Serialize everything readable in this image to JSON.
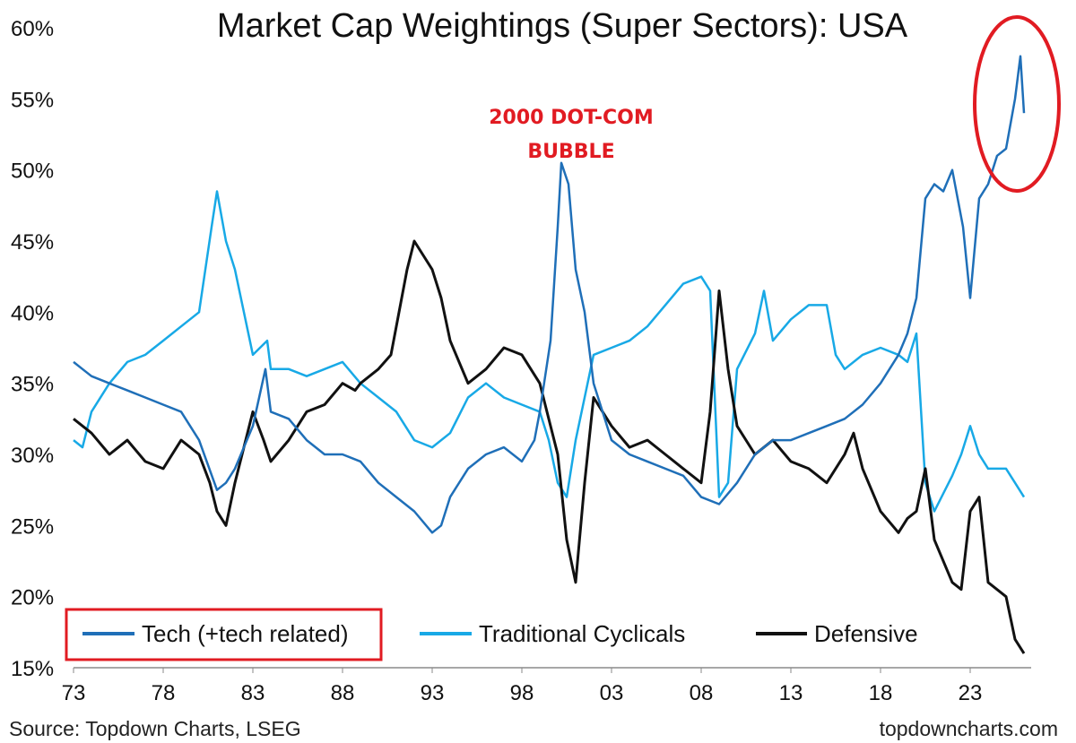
{
  "chart_data": {
    "type": "line",
    "title": "Market Cap Weightings (Super Sectors): USA",
    "annotation": [
      "2000 DOT-COM",
      "BUBBLE"
    ],
    "source": "Source: Topdown Charts, LSEG",
    "watermark": "topdowncharts.com",
    "ylim": [
      15,
      60
    ],
    "y_ticks": [
      60,
      55,
      50,
      45,
      40,
      35,
      30,
      25,
      20,
      15
    ],
    "y_tick_labels": [
      "60%",
      "55%",
      "50%",
      "45%",
      "40%",
      "35%",
      "30%",
      "25%",
      "20%",
      "15%"
    ],
    "xlim": [
      1973,
      2026.2
    ],
    "x_ticks": [
      1973,
      1978,
      1983,
      1988,
      1993,
      1998,
      2003,
      2008,
      2013,
      2018,
      2023
    ],
    "x_tick_labels": [
      "73",
      "78",
      "83",
      "88",
      "93",
      "98",
      "03",
      "08",
      "13",
      "18",
      "23"
    ],
    "grid": false,
    "legend_position": "bottom",
    "series": [
      {
        "name": "Tech (+tech related)",
        "color": "#1f6fb8",
        "x": [
          1973,
          1973.5,
          1974,
          1975,
          1976,
          1977,
          1978,
          1979,
          1980,
          1981,
          1981.5,
          1982,
          1983,
          1983.7,
          1984,
          1985,
          1986,
          1987,
          1988,
          1989,
          1990,
          1991,
          1992,
          1993,
          1993.5,
          1994,
          1995,
          1996,
          1997,
          1998,
          1998.7,
          1999,
          1999.6,
          2000.0,
          2000.2,
          2000.6,
          2001,
          2001.5,
          2002,
          2002.5,
          2003,
          2004,
          2005,
          2006,
          2007,
          2008,
          2009,
          2010,
          2011,
          2012,
          2013,
          2014,
          2015,
          2016,
          2017,
          2018,
          2019,
          2019.5,
          2020,
          2020.5,
          2021,
          2021.5,
          2022,
          2022.6,
          2023,
          2023.5,
          2024,
          2024.5,
          2025,
          2025.5,
          2025.8,
          2026
        ],
        "values": [
          36.5,
          36,
          35.5,
          35,
          34.5,
          34,
          33.5,
          33,
          31,
          27.5,
          28,
          29,
          32,
          36,
          33,
          32.5,
          31,
          30,
          30,
          29.5,
          28,
          27,
          26,
          24.5,
          25,
          27,
          29,
          30,
          30.5,
          29.5,
          31,
          33,
          38,
          46,
          50.5,
          49,
          43,
          40,
          35,
          33,
          31,
          30,
          29.5,
          29,
          28.5,
          27,
          26.5,
          28,
          30,
          31,
          31,
          31.5,
          32,
          32.5,
          33.5,
          35,
          37,
          38.5,
          41,
          48,
          49,
          48.5,
          50,
          46,
          41,
          48,
          49,
          51,
          51.5,
          55,
          58,
          54
        ]
      },
      {
        "name": "Traditional Cyclicals",
        "color": "#18a9e6",
        "x": [
          1973,
          1973.5,
          1974,
          1975,
          1976,
          1977,
          1978,
          1979,
          1980,
          1980.7,
          1981,
          1981.5,
          1982,
          1983,
          1983.8,
          1984,
          1985,
          1986,
          1987,
          1988,
          1989,
          1990,
          1991,
          1992,
          1993,
          1994,
          1995,
          1996,
          1997,
          1998,
          1999,
          1999.5,
          2000,
          2000.5,
          2001,
          2001.5,
          2002,
          2003,
          2004,
          2005,
          2006,
          2007,
          2008,
          2008.5,
          2009,
          2009.5,
          2010,
          2011,
          2011.5,
          2012,
          2013,
          2014,
          2015,
          2015.5,
          2016,
          2017,
          2018,
          2019,
          2019.5,
          2020,
          2020.5,
          2021,
          2022,
          2022.5,
          2023,
          2023.5,
          2024,
          2025,
          2025.5,
          2026
        ],
        "values": [
          31,
          30.5,
          33,
          35,
          36.5,
          37,
          38,
          39,
          40,
          46,
          48.5,
          45,
          43,
          37,
          38,
          36,
          36,
          35.5,
          36,
          36.5,
          35,
          34,
          33,
          31,
          30.5,
          31.5,
          34,
          35,
          34,
          33.5,
          33,
          31,
          28,
          27,
          31,
          34,
          37,
          37.5,
          38,
          39,
          40.5,
          42,
          42.5,
          41.5,
          27,
          28,
          36,
          38.5,
          41.5,
          38,
          39.5,
          40.5,
          40.5,
          37,
          36,
          37,
          37.5,
          37,
          36.5,
          38.5,
          28,
          26,
          28.5,
          30,
          32,
          30,
          29,
          29,
          28,
          27
        ]
      },
      {
        "name": "Defensive",
        "color": "#111111",
        "x": [
          1973,
          1974,
          1975,
          1976,
          1977,
          1978,
          1979,
          1980,
          1980.6,
          1981,
          1981.5,
          1982,
          1983,
          1983.6,
          1984,
          1985,
          1986,
          1987,
          1988,
          1988.7,
          1989,
          1990,
          1990.7,
          1991,
          1991.6,
          1992,
          1993,
          1993.5,
          1994,
          1995,
          1996,
          1997,
          1998,
          1999,
          2000,
          2000.5,
          2001,
          2001.5,
          2002,
          2003,
          2004,
          2005,
          2006,
          2007,
          2008,
          2008.5,
          2009,
          2009.5,
          2010,
          2011,
          2012,
          2013,
          2014,
          2015,
          2016,
          2016.5,
          2017,
          2018,
          2019,
          2019.5,
          2020,
          2020.5,
          2021,
          2022,
          2022.5,
          2023,
          2023.5,
          2024,
          2025,
          2025.5,
          2026
        ],
        "values": [
          32.5,
          31.5,
          30,
          31,
          29.5,
          29,
          31,
          30,
          28,
          26,
          25,
          28,
          33,
          31,
          29.5,
          31,
          33,
          33.5,
          35,
          34.5,
          35,
          36,
          37,
          39,
          43,
          45,
          43,
          41,
          38,
          35,
          36,
          37.5,
          37,
          35,
          30,
          24,
          21,
          28,
          34,
          32,
          30.5,
          31,
          30,
          29,
          28,
          33,
          41.5,
          36,
          32,
          30,
          31,
          29.5,
          29,
          28,
          30,
          31.5,
          29,
          26,
          24.5,
          25.5,
          26,
          29,
          24,
          21,
          20.5,
          26,
          27,
          21,
          20,
          17,
          16
        ]
      }
    ]
  },
  "highlights": {
    "circle_color": "#e11b22",
    "legend_box_color": "#e11b22"
  }
}
